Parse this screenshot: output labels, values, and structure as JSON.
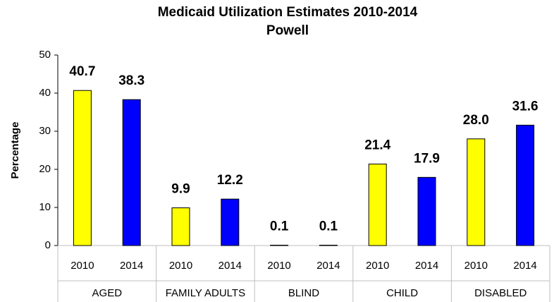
{
  "chart_data": {
    "type": "bar",
    "title": "Medicaid Utilization Estimates 2010-2014",
    "subtitle": "Powell",
    "y_label": "Percentage",
    "categories": [
      "AGED",
      "FAMILY ADULTS",
      "BLIND",
      "CHILD",
      "DISABLED"
    ],
    "series": [
      {
        "name": "2010",
        "color": "#ffff00",
        "values": [
          40.7,
          9.9,
          0.1,
          21.4,
          28.0
        ],
        "value_labels": [
          "40.7",
          "9.9",
          "0.1",
          "21.4",
          "28.0"
        ]
      },
      {
        "name": "2014",
        "color": "#0000ff",
        "values": [
          38.3,
          12.2,
          0.1,
          17.9,
          31.6
        ],
        "value_labels": [
          "38.3",
          "12.2",
          "0.1",
          "17.9",
          "31.6"
        ]
      }
    ],
    "ylim": [
      0,
      50
    ],
    "yticks": [
      0,
      10,
      20,
      30,
      40,
      50
    ],
    "grid": false
  }
}
